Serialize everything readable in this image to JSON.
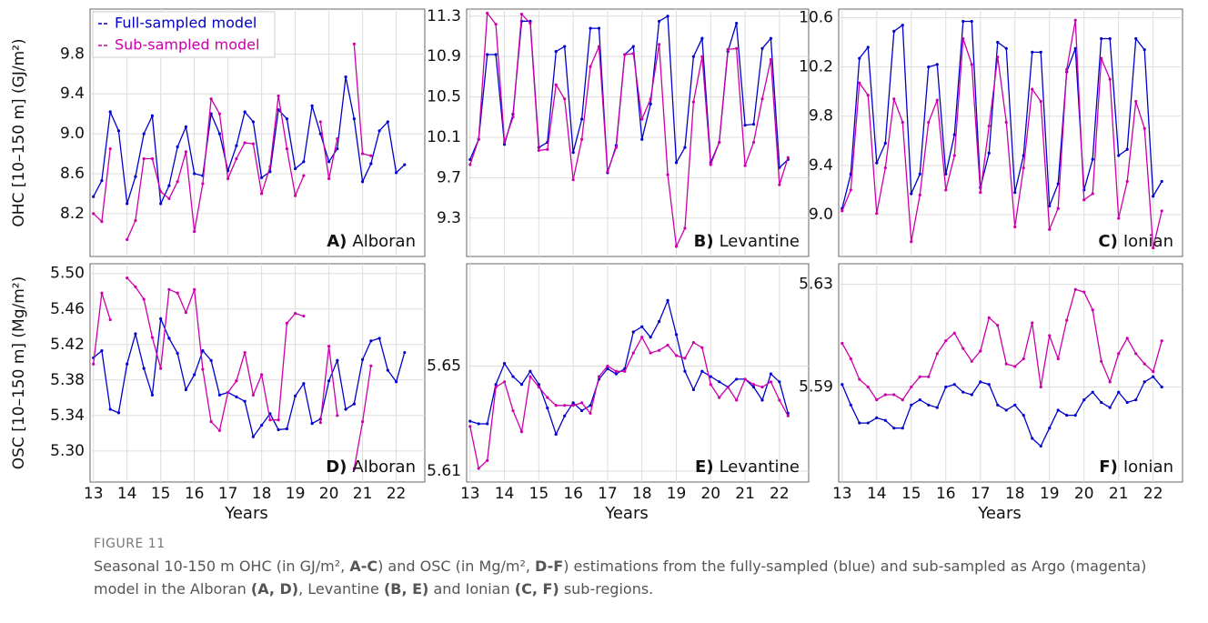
{
  "chart_data": [
    {
      "type": "line",
      "ylabel": "OHC [10–150 m] (GJ/m²)",
      "panel_label": "A)",
      "region": "Alboran",
      "legend": "upper left",
      "show_xtick_labels": false,
      "x": [
        13,
        13.25,
        13.5,
        13.75,
        14,
        14.25,
        14.5,
        14.75,
        15,
        15.25,
        15.5,
        15.75,
        16,
        16.25,
        16.5,
        16.75,
        17,
        17.25,
        17.5,
        17.75,
        18,
        18.25,
        18.5,
        18.75,
        19,
        19.25,
        19.5,
        19.75,
        20,
        20.25,
        20.5,
        20.75,
        21,
        21.25,
        21.5,
        21.75,
        22,
        22.25
      ],
      "xlim": [
        12.9,
        22.85
      ],
      "xticks": [
        13,
        14,
        15,
        16,
        17,
        18,
        19,
        20,
        21,
        22
      ],
      "ylim": [
        7.77,
        10.25
      ],
      "yticks": [
        8.2,
        8.6,
        {
          "value": 9,
          "label": "9.0"
        },
        9.4,
        9.8
      ],
      "grid": true,
      "series": [
        {
          "name": "Full-sampled model",
          "color": "#0000cc",
          "values": [
            8.37,
            8.53,
            9.22,
            9.03,
            8.3,
            8.57,
            9.0,
            9.18,
            8.3,
            8.48,
            8.87,
            9.07,
            8.6,
            8.58,
            9.2,
            9.0,
            8.63,
            8.88,
            9.22,
            9.12,
            8.56,
            8.62,
            9.24,
            9.15,
            8.65,
            8.72,
            9.28,
            9.0,
            8.72,
            8.85,
            9.57,
            9.15,
            8.52,
            8.7,
            9.03,
            9.12,
            8.61,
            8.69
          ]
        },
        {
          "name": "Sub-sampled model",
          "color": "#cc00aa",
          "values": [
            8.2,
            8.12,
            8.85,
            null,
            7.94,
            8.13,
            8.75,
            8.75,
            8.42,
            8.35,
            8.52,
            8.82,
            8.02,
            8.5,
            9.35,
            9.2,
            8.55,
            8.75,
            8.91,
            8.9,
            8.4,
            8.67,
            9.38,
            8.85,
            8.38,
            8.58,
            null,
            9.12,
            8.55,
            8.95,
            null,
            9.9,
            8.8,
            8.78,
            null,
            null,
            null,
            null
          ]
        }
      ]
    },
    {
      "type": "line",
      "panel_label": "B)",
      "region": "Levantine",
      "show_xtick_labels": false,
      "x": [
        13,
        13.25,
        13.5,
        13.75,
        14,
        14.25,
        14.5,
        14.75,
        15,
        15.25,
        15.5,
        15.75,
        16,
        16.25,
        16.5,
        16.75,
        17,
        17.25,
        17.5,
        17.75,
        18,
        18.25,
        18.5,
        18.75,
        19,
        19.25,
        19.5,
        19.75,
        20,
        20.25,
        20.5,
        20.75,
        21,
        21.25,
        21.5,
        21.75,
        22,
        22.25
      ],
      "xlim": [
        12.9,
        22.85
      ],
      "xticks": [
        13,
        14,
        15,
        16,
        17,
        18,
        19,
        20,
        21,
        22
      ],
      "ylim": [
        8.92,
        11.37
      ],
      "yticks": [
        9.3,
        9.7,
        10.1,
        10.5,
        10.9,
        11.3
      ],
      "grid": true,
      "series": [
        {
          "color": "#0000cc",
          "values": [
            9.88,
            10.08,
            10.92,
            10.92,
            10.03,
            10.33,
            11.25,
            11.25,
            10.0,
            10.05,
            10.95,
            11.0,
            9.95,
            10.28,
            11.18,
            11.18,
            9.75,
            10.02,
            10.92,
            11.0,
            10.08,
            10.43,
            11.25,
            11.3,
            9.85,
            10.0,
            10.9,
            11.08,
            9.85,
            10.05,
            10.95,
            11.23,
            10.22,
            10.23,
            10.98,
            11.08,
            9.8,
            9.88
          ]
        },
        {
          "color": "#cc00aa",
          "values": [
            9.83,
            10.08,
            11.33,
            11.22,
            10.05,
            10.3,
            11.32,
            11.23,
            9.97,
            9.98,
            10.62,
            10.48,
            9.68,
            10.08,
            10.8,
            11.0,
            9.76,
            10.0,
            10.92,
            10.93,
            10.28,
            10.48,
            11.02,
            9.73,
            9.02,
            9.2,
            10.45,
            10.9,
            9.83,
            10.05,
            10.97,
            10.98,
            9.82,
            10.05,
            10.48,
            10.87,
            9.63,
            9.9
          ]
        }
      ]
    },
    {
      "type": "line",
      "panel_label": "C)",
      "region": "Ionian",
      "show_xtick_labels": false,
      "x": [
        13,
        13.25,
        13.5,
        13.75,
        14,
        14.25,
        14.5,
        14.75,
        15,
        15.25,
        15.5,
        15.75,
        16,
        16.25,
        16.5,
        16.75,
        17,
        17.25,
        17.5,
        17.75,
        18,
        18.25,
        18.5,
        18.75,
        19,
        19.25,
        19.5,
        19.75,
        20,
        20.25,
        20.5,
        20.75,
        21,
        21.25,
        21.5,
        21.75,
        22,
        22.25
      ],
      "xlim": [
        12.9,
        22.85
      ],
      "xticks": [
        13,
        14,
        15,
        16,
        17,
        18,
        19,
        20,
        21,
        22
      ],
      "ylim": [
        8.66,
        10.67
      ],
      "yticks": [
        {
          "value": 9,
          "label": "9.0"
        },
        9.4,
        9.8,
        10.2,
        10.6
      ],
      "grid": true,
      "series": [
        {
          "color": "#0000cc",
          "values": [
            9.05,
            9.33,
            10.27,
            10.36,
            9.42,
            9.58,
            10.49,
            10.54,
            9.17,
            9.33,
            10.2,
            10.22,
            9.33,
            9.65,
            10.57,
            10.57,
            9.22,
            9.5,
            10.4,
            10.35,
            9.18,
            9.48,
            10.32,
            10.32,
            9.07,
            9.25,
            10.16,
            10.35,
            9.2,
            9.45,
            10.43,
            10.43,
            9.48,
            9.53,
            10.43,
            10.34,
            9.15,
            9.27
          ]
        },
        {
          "color": "#cc00aa",
          "values": [
            9.03,
            9.2,
            10.07,
            9.97,
            9.01,
            9.38,
            9.94,
            9.75,
            8.78,
            9.16,
            9.75,
            9.93,
            9.2,
            9.48,
            10.43,
            10.22,
            9.18,
            9.72,
            10.28,
            9.75,
            8.9,
            9.38,
            10.02,
            9.92,
            8.88,
            9.05,
            10.18,
            10.58,
            9.12,
            9.17,
            10.27,
            10.1,
            8.97,
            9.27,
            9.92,
            9.7,
            8.73,
            9.03
          ]
        }
      ]
    },
    {
      "type": "line",
      "ylabel": "OSC [10–150 m] (Mg/m²)",
      "xlabel": "Years",
      "panel_label": "D)",
      "region": "Alboran",
      "show_xtick_labels": true,
      "x": [
        13,
        13.25,
        13.5,
        13.75,
        14,
        14.25,
        14.5,
        14.75,
        15,
        15.25,
        15.5,
        15.75,
        16,
        16.25,
        16.5,
        16.75,
        17,
        17.25,
        17.5,
        17.75,
        18,
        18.25,
        18.5,
        18.75,
        19,
        19.25,
        19.5,
        19.75,
        20,
        20.25,
        20.5,
        20.75,
        21,
        21.25,
        21.5,
        21.75,
        22,
        22.25
      ],
      "xlim": [
        12.9,
        22.85
      ],
      "xticks": [
        13,
        14,
        15,
        16,
        17,
        18,
        19,
        20,
        21,
        22
      ],
      "ylim": [
        5.265,
        5.511
      ],
      "yticks": [
        {
          "value": 5.3,
          "label": "5.30"
        },
        5.34,
        5.38,
        5.42,
        5.46,
        {
          "value": 5.5,
          "label": "5.50"
        }
      ],
      "grid": true,
      "series": [
        {
          "color": "#0000cc",
          "values": [
            5.405,
            5.413,
            5.347,
            5.343,
            5.398,
            5.432,
            5.393,
            5.363,
            5.449,
            5.427,
            5.41,
            5.369,
            5.386,
            5.413,
            5.402,
            5.363,
            5.366,
            5.361,
            5.356,
            5.316,
            5.329,
            5.342,
            5.324,
            5.325,
            5.362,
            5.376,
            5.331,
            5.336,
            5.379,
            5.402,
            5.347,
            5.353,
            5.403,
            5.424,
            5.427,
            5.391,
            5.378,
            5.411
          ]
        },
        {
          "color": "#cc00aa",
          "values": [
            5.398,
            5.478,
            5.448,
            null,
            5.495,
            5.485,
            5.471,
            5.428,
            5.393,
            5.482,
            5.478,
            5.456,
            5.482,
            5.392,
            5.333,
            5.323,
            5.366,
            5.379,
            5.411,
            5.363,
            5.386,
            5.335,
            5.335,
            5.444,
            5.455,
            5.452,
            null,
            5.332,
            5.418,
            5.34,
            null,
            5.28,
            5.333,
            5.396,
            null,
            null,
            null,
            null
          ]
        }
      ]
    },
    {
      "type": "line",
      "xlabel": "Years",
      "panel_label": "E)",
      "region": "Levantine",
      "show_xtick_labels": true,
      "x": [
        13,
        13.25,
        13.5,
        13.75,
        14,
        14.25,
        14.5,
        14.75,
        15,
        15.25,
        15.5,
        15.75,
        16,
        16.25,
        16.5,
        16.75,
        17,
        17.25,
        17.5,
        17.75,
        18,
        18.25,
        18.5,
        18.75,
        19,
        19.25,
        19.5,
        19.75,
        20,
        20.25,
        20.5,
        20.75,
        21,
        21.25,
        21.5,
        21.75,
        22,
        22.25
      ],
      "xlim": [
        12.9,
        22.85
      ],
      "xticks": [
        13,
        14,
        15,
        16,
        17,
        18,
        19,
        20,
        21,
        22
      ],
      "ylim": [
        5.6058,
        5.689
      ],
      "yticks": [
        5.61,
        5.65
      ],
      "grid": true,
      "series": [
        {
          "color": "#0000cc",
          "values": [
            5.629,
            5.628,
            5.628,
            5.643,
            5.651,
            5.646,
            5.643,
            5.648,
            5.643,
            5.634,
            5.624,
            5.631,
            5.636,
            5.633,
            5.635,
            5.645,
            5.649,
            5.647,
            5.649,
            5.663,
            5.665,
            5.661,
            5.667,
            5.675,
            5.662,
            5.648,
            5.641,
            5.648,
            5.646,
            5.644,
            5.642,
            5.645,
            5.645,
            5.642,
            5.637,
            5.647,
            5.644,
            5.632
          ]
        },
        {
          "color": "#cc00aa",
          "values": [
            5.627,
            5.611,
            5.614,
            5.642,
            5.644,
            5.633,
            5.625,
            5.646,
            5.642,
            5.638,
            5.635,
            5.635,
            5.635,
            5.636,
            5.632,
            5.646,
            5.65,
            5.648,
            5.648,
            5.655,
            5.661,
            5.655,
            5.656,
            5.658,
            5.654,
            5.653,
            5.659,
            5.657,
            5.643,
            5.638,
            5.642,
            5.637,
            5.645,
            5.643,
            5.642,
            5.644,
            5.637,
            5.631
          ]
        }
      ]
    },
    {
      "type": "line",
      "xlabel": "Years",
      "panel_label": "F)",
      "region": "Ionian",
      "show_xtick_labels": true,
      "x": [
        13,
        13.25,
        13.5,
        13.75,
        14,
        14.25,
        14.5,
        14.75,
        15,
        15.25,
        15.5,
        15.75,
        16,
        16.25,
        16.5,
        16.75,
        17,
        17.25,
        17.5,
        17.75,
        18,
        18.25,
        18.5,
        18.75,
        19,
        19.25,
        19.5,
        19.75,
        20,
        20.25,
        20.5,
        20.75,
        21,
        21.25,
        21.5,
        21.75,
        22,
        22.25
      ],
      "xlim": [
        12.9,
        22.85
      ],
      "xticks": [
        13,
        14,
        15,
        16,
        17,
        18,
        19,
        20,
        21,
        22
      ],
      "ylim": [
        5.553,
        5.638
      ],
      "yticks": [
        5.59,
        5.63
      ],
      "grid": true,
      "series": [
        {
          "color": "#0000cc",
          "values": [
            5.591,
            5.583,
            5.576,
            5.576,
            5.578,
            5.577,
            5.574,
            5.574,
            5.583,
            5.585,
            5.583,
            5.582,
            5.59,
            5.591,
            5.588,
            5.587,
            5.592,
            5.591,
            5.583,
            5.581,
            5.583,
            5.579,
            5.57,
            5.567,
            5.574,
            5.581,
            5.579,
            5.579,
            5.585,
            5.588,
            5.584,
            5.582,
            5.588,
            5.584,
            5.585,
            5.592,
            5.594,
            5.59
          ]
        },
        {
          "color": "#cc00aa",
          "values": [
            5.607,
            5.601,
            5.593,
            5.59,
            5.585,
            5.587,
            5.587,
            5.585,
            5.59,
            5.594,
            5.594,
            5.603,
            5.608,
            5.611,
            5.605,
            5.6,
            5.604,
            5.617,
            5.614,
            5.599,
            5.598,
            5.601,
            5.615,
            5.59,
            5.61,
            5.601,
            5.616,
            5.628,
            5.627,
            5.62,
            5.6,
            5.592,
            5.603,
            5.609,
            5.603,
            5.599,
            5.596,
            5.608
          ]
        }
      ]
    }
  ],
  "figure": {
    "label": "FIGURE 11",
    "caption": [
      {
        "text": "Seasonal 10-150 m OHC (in GJ/m², ",
        "bold": false
      },
      {
        "text": "A-C",
        "bold": true
      },
      {
        "text": ") and OSC (in Mg/m², ",
        "bold": false
      },
      {
        "text": "D-F",
        "bold": true
      },
      {
        "text": ") estimations from the fully-sampled (blue) and sub-sampled as Argo (magenta) model in the Alboran ",
        "bold": false
      },
      {
        "text": "(A, D)",
        "bold": true
      },
      {
        "text": ", Levantine ",
        "bold": false
      },
      {
        "text": "(B, E)",
        "bold": true
      },
      {
        "text": " and Ionian ",
        "bold": false
      },
      {
        "text": "(C, F)",
        "bold": true
      },
      {
        "text": " sub-regions.",
        "bold": false
      }
    ]
  }
}
